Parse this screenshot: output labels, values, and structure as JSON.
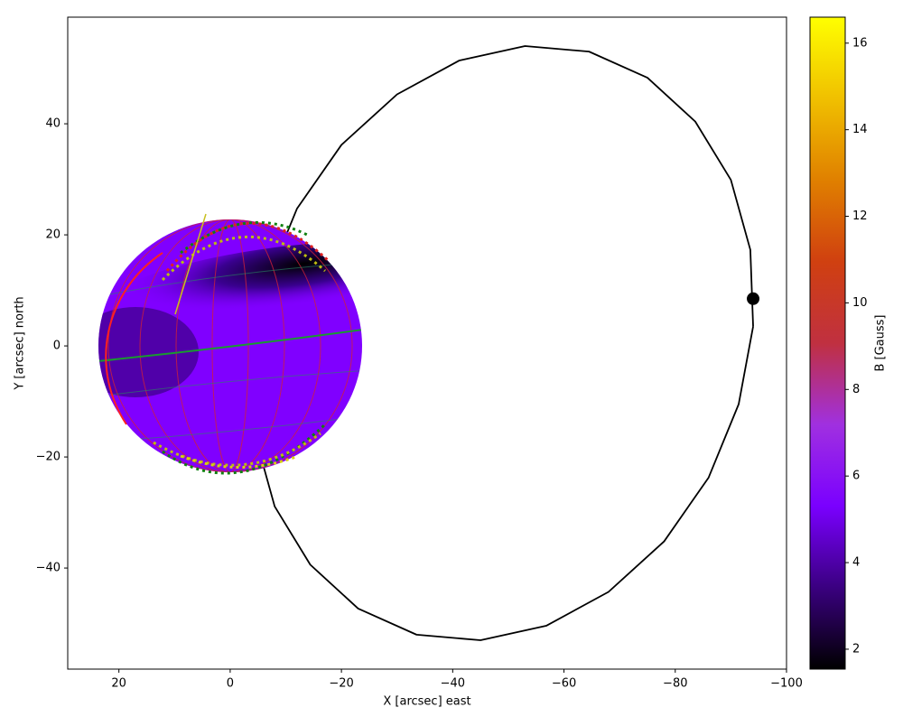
{
  "chart_data": {
    "type": "line",
    "x_label": "X [arcsec] east",
    "y_label": "Y [arcsec] north",
    "xlim": [
      29.2,
      -100
    ],
    "ylim": [
      -58.2,
      59.2
    ],
    "xticks": [
      20,
      0,
      {
        "value": -20,
        "label": "−20"
      },
      {
        "value": -40,
        "label": "−40"
      },
      {
        "value": -60,
        "label": "−60"
      },
      {
        "value": -80,
        "label": "−80"
      },
      {
        "value": -100,
        "label": "−100"
      }
    ],
    "yticks": [
      {
        "value": -40,
        "label": "−40"
      },
      {
        "value": -20,
        "label": "−20"
      },
      0,
      20,
      40
    ],
    "series": [
      {
        "name": "orbit",
        "color": "#000000",
        "x": [
          -94,
          -93.5,
          -90.0,
          -83.6,
          -75.0,
          -64.5,
          -53,
          -41.2,
          -30.0,
          -20.0,
          -12.0,
          -6.6,
          -4,
          -4.5,
          -8.0,
          -14.4,
          -23.0,
          -33.5,
          -45,
          -56.8,
          -68.0,
          -78.0,
          -86.0,
          -91.4,
          -94
        ],
        "values": [
          3.5,
          17.3,
          29.9,
          40.4,
          48.3,
          53.0,
          54,
          51.4,
          45.3,
          36.2,
          24.7,
          11.5,
          -2.5,
          -16.3,
          -28.9,
          -39.4,
          -47.3,
          -52.0,
          -53,
          -50.4,
          -44.3,
          -35.2,
          -23.7,
          -10.5,
          3.5
        ]
      },
      {
        "name": "planet",
        "color": "#000000",
        "x": [
          -94
        ],
        "values": [
          8.5
        ]
      }
    ],
    "colorbar": {
      "label": "B [Gauss]",
      "lim": [
        1.54,
        16.6
      ],
      "ticks": [
        2,
        4,
        6,
        8,
        10,
        12,
        14,
        16
      ],
      "colors": [
        "#000000",
        "#3a0080",
        "#7a00ff",
        "#a030e0",
        "#c03040",
        "#d04010",
        "#e08000",
        "#f0c000",
        "#ffff00"
      ]
    }
  }
}
